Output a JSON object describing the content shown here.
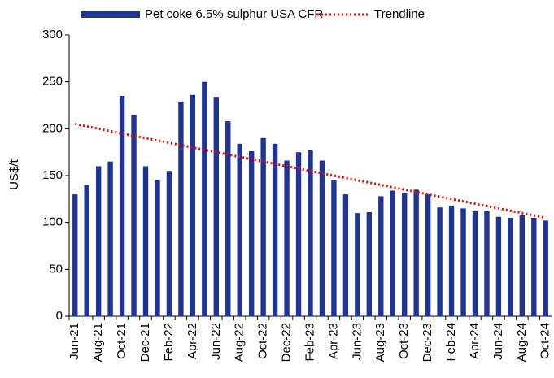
{
  "chart_data": {
    "type": "bar",
    "y_label": "US$/t",
    "categories": [
      "Jun-21",
      null,
      "Aug-21",
      null,
      "Oct-21",
      null,
      "Dec-21",
      null,
      "Feb-22",
      null,
      "Apr-22",
      null,
      "Jun-22",
      null,
      "Aug-22",
      null,
      "Oct-22",
      null,
      "Dec-22",
      null,
      "Feb-23",
      null,
      "Apr-23",
      null,
      "Jun-23",
      null,
      "Aug-23",
      null,
      "Oct-23",
      null,
      "Dec-23",
      null,
      "Feb-24",
      null,
      "Apr-24",
      null,
      "Jun-24",
      null,
      "Aug-24",
      null,
      "Oct-24"
    ],
    "series": [
      {
        "name": "Pet coke 6.5% sulphur USA CFR",
        "type": "bar",
        "color": "#1f3494",
        "values": [
          130,
          140,
          160,
          165,
          235,
          215,
          160,
          145,
          155,
          229,
          236,
          250,
          234,
          208,
          184,
          176,
          190,
          184,
          166,
          175,
          177,
          166,
          145,
          130,
          110,
          111,
          128,
          134,
          131,
          135,
          130,
          116,
          118,
          115,
          112,
          112,
          106,
          105,
          108,
          105,
          102
        ]
      },
      {
        "name": "Trendline",
        "type": "line",
        "color": "#ff0000",
        "values": [
          205,
          202.5,
          200,
          197.5,
          195,
          192.5,
          190,
          187.5,
          185,
          182.5,
          180,
          177.5,
          175,
          172.5,
          170,
          167.5,
          165,
          162.5,
          160,
          157.5,
          155,
          152.5,
          150,
          147.5,
          145,
          142.5,
          140,
          137.5,
          135,
          132.5,
          130,
          127.5,
          125,
          122.5,
          120,
          117.5,
          115,
          112.5,
          110,
          107.5,
          105
        ]
      }
    ],
    "ylim": [
      0,
      300
    ],
    "yticks": [
      0,
      50,
      100,
      150,
      200,
      250,
      300
    ],
    "grid": false
  }
}
